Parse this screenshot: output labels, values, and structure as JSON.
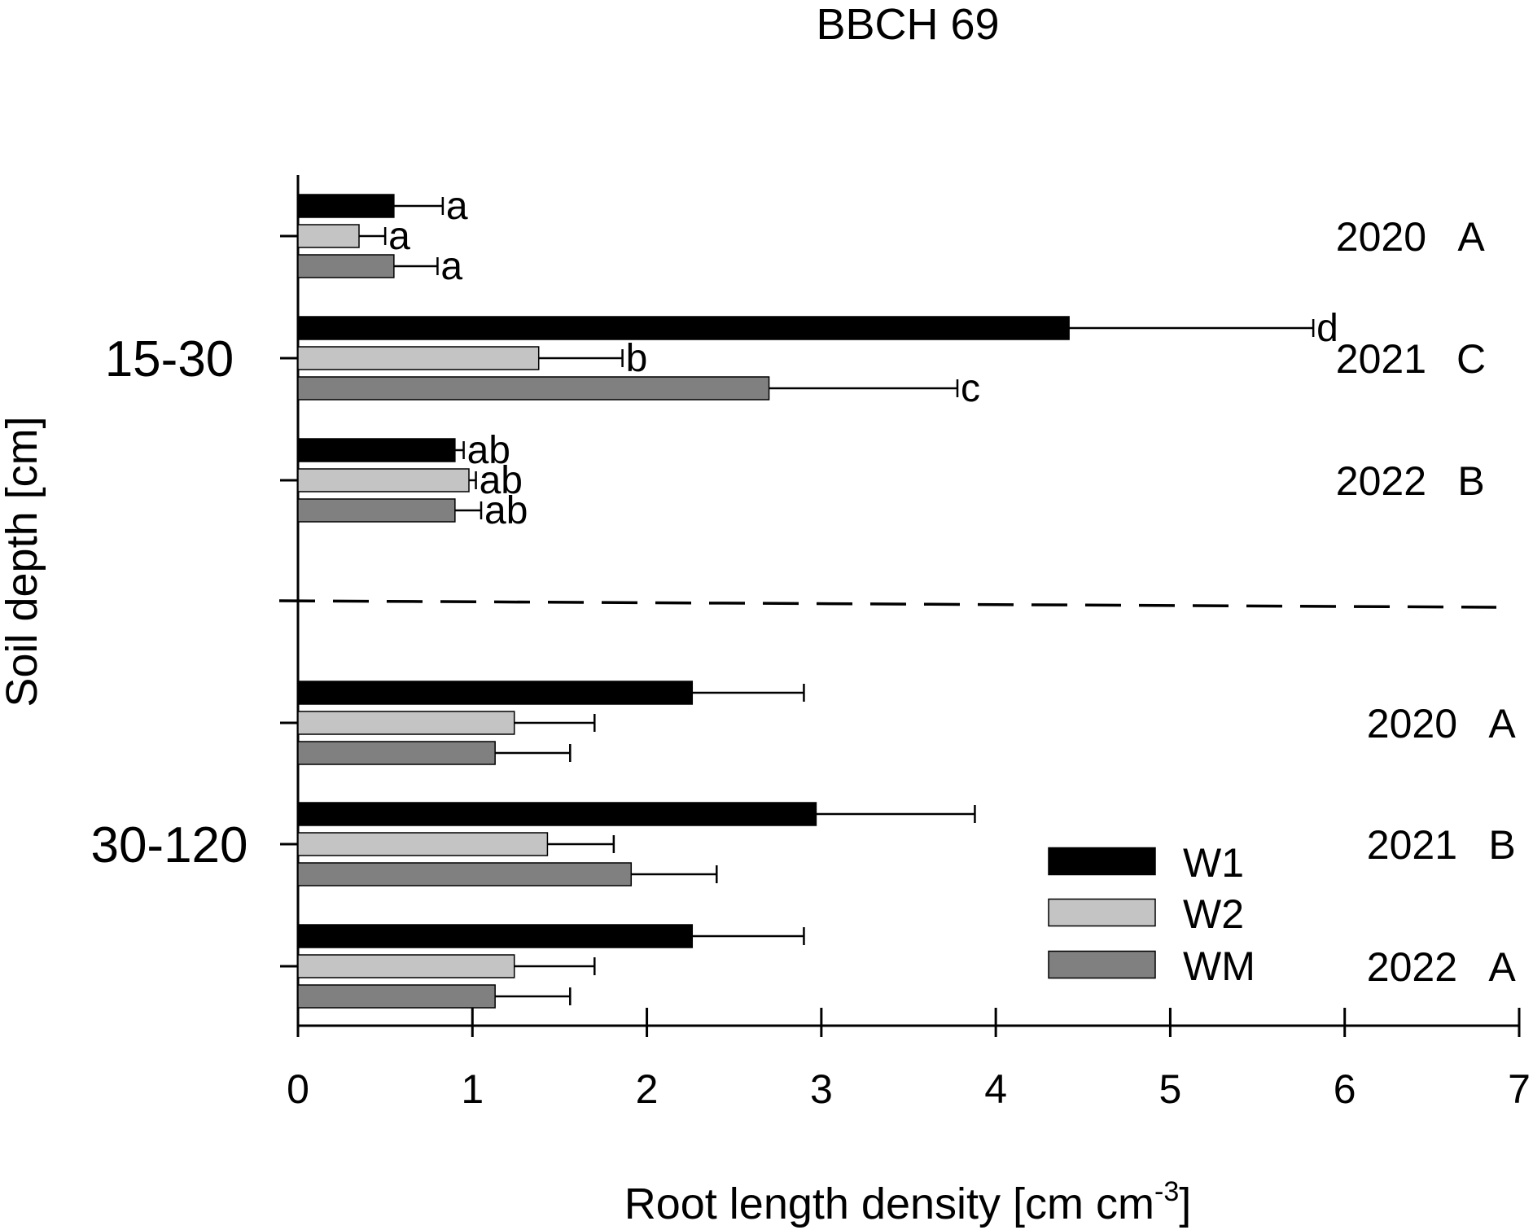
{
  "chart_data": {
    "type": "bar",
    "orientation": "horizontal",
    "title": "BBCH 69",
    "xlabel": "Root length density [cm cm",
    "xlabel_superscript": "-3",
    "xlabel_suffix": "]",
    "ylabel": "Soil depth [cm]",
    "xlim": [
      0,
      7
    ],
    "x_ticks": [
      "0",
      "1",
      "2",
      "3",
      "4",
      "5",
      "6",
      "7"
    ],
    "legend": {
      "position": "lower-right",
      "entries": [
        {
          "name": "W1",
          "color": "#000000"
        },
        {
          "name": "W2",
          "color": "#c4c4c4"
        },
        {
          "name": "WM",
          "color": "#808080"
        }
      ]
    },
    "groups": [
      {
        "depth": "15-30",
        "years": [
          {
            "year": "2020",
            "letter": "A",
            "bars": [
              {
                "series": "W1",
                "value": 0.55,
                "error": 0.28,
                "sig": "a"
              },
              {
                "series": "W2",
                "value": 0.35,
                "error": 0.15,
                "sig": "a"
              },
              {
                "series": "WM",
                "value": 0.55,
                "error": 0.25,
                "sig": "a"
              }
            ]
          },
          {
            "year": "2021",
            "letter": "C",
            "bars": [
              {
                "series": "W1",
                "value": 4.42,
                "error": 1.4,
                "sig": "d"
              },
              {
                "series": "W2",
                "value": 1.38,
                "error": 0.48,
                "sig": "b"
              },
              {
                "series": "WM",
                "value": 2.7,
                "error": 1.08,
                "sig": "c"
              }
            ]
          },
          {
            "year": "2022",
            "letter": "B",
            "bars": [
              {
                "series": "W1",
                "value": 0.9,
                "error": 0.05,
                "sig": "ab"
              },
              {
                "series": "W2",
                "value": 0.98,
                "error": 0.04,
                "sig": "ab"
              },
              {
                "series": "WM",
                "value": 0.9,
                "error": 0.15,
                "sig": "ab"
              }
            ]
          }
        ]
      },
      {
        "depth": "30-120",
        "years": [
          {
            "year": "2020",
            "letter": "A",
            "bars": [
              {
                "series": "W1",
                "value": 2.26,
                "error": 0.64,
                "sig": ""
              },
              {
                "series": "W2",
                "value": 1.24,
                "error": 0.46,
                "sig": ""
              },
              {
                "series": "WM",
                "value": 1.13,
                "error": 0.43,
                "sig": ""
              }
            ]
          },
          {
            "year": "2021",
            "letter": "B",
            "bars": [
              {
                "series": "W1",
                "value": 2.97,
                "error": 0.91,
                "sig": ""
              },
              {
                "series": "W2",
                "value": 1.43,
                "error": 0.38,
                "sig": ""
              },
              {
                "series": "WM",
                "value": 1.91,
                "error": 0.49,
                "sig": ""
              }
            ]
          },
          {
            "year": "2022",
            "letter": "A",
            "bars": [
              {
                "series": "W1",
                "value": 2.26,
                "error": 0.64,
                "sig": ""
              },
              {
                "series": "W2",
                "value": 1.24,
                "error": 0.46,
                "sig": ""
              },
              {
                "series": "WM",
                "value": 1.13,
                "error": 0.43,
                "sig": ""
              }
            ]
          }
        ]
      }
    ]
  }
}
